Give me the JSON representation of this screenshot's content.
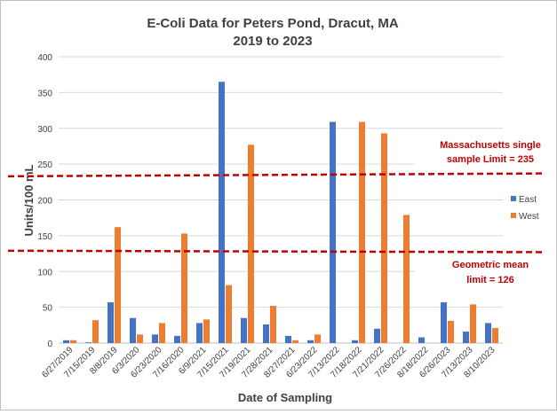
{
  "chart_data": {
    "type": "bar",
    "title_line1": "E-Coli Data for Peters Pond, Dracut, MA",
    "title_line2": "2019 to 2023",
    "xlabel": "Date of Sampling",
    "ylabel": "Units/100 mL",
    "ylim": [
      0,
      400
    ],
    "yticks": [
      "0",
      "50",
      "100",
      "150",
      "200",
      "250",
      "300",
      "350",
      "400"
    ],
    "grid": "horizontal",
    "legend_position": "right",
    "categories": [
      "6/27/2019",
      "7/15/2019",
      "8/8/2019",
      "6/3/2020",
      "6/23/2020",
      "7/16/2020",
      "6/9/2021",
      "7/15/2021",
      "7/19/2021",
      "7/28/2021",
      "8/27/2021",
      "6/23/2022",
      "7/13/2022",
      "7/18/2022",
      "7/21/2022",
      "7/26/2022",
      "8/18/2022",
      "6/26/2023",
      "7/13/2023",
      "8/10/2023"
    ],
    "series": [
      {
        "name": "East",
        "color": "#4472c4",
        "values": [
          4,
          1,
          57,
          35,
          12,
          10,
          28,
          365,
          35,
          26,
          10,
          4,
          309,
          4,
          20,
          0,
          8,
          57,
          16,
          28
        ]
      },
      {
        "name": "West",
        "color": "#ed7d31",
        "values": [
          4,
          32,
          162,
          12,
          28,
          153,
          33,
          81,
          277,
          52,
          4,
          12,
          0,
          309,
          293,
          179,
          0,
          31,
          54,
          21
        ]
      }
    ],
    "reference_lines": [
      {
        "label_line1": "Massachusetts single",
        "label_line2": "sample Limit = 235",
        "start": 233,
        "end": 237,
        "color": "#c00000"
      },
      {
        "label_line1": "Geometric mean",
        "label_line2": "limit = 126",
        "start": 129,
        "end": 127,
        "color": "#c00000"
      }
    ]
  }
}
